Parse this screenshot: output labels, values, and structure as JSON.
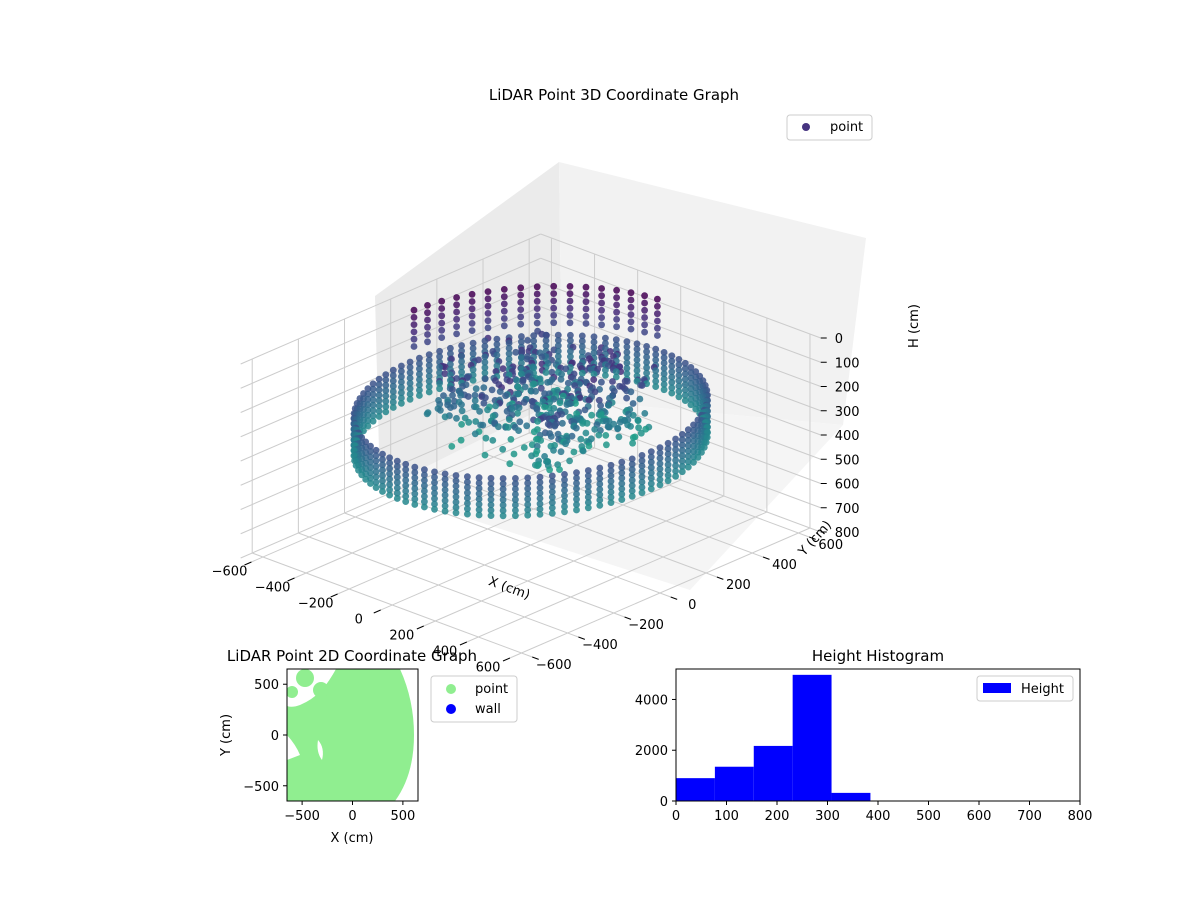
{
  "figure": {
    "charts": [
      {
        "id": "lidar-3d",
        "type": "scatter",
        "title": "LiDAR Point 3D Coordinate Graph",
        "xlabel": "X (cm)",
        "ylabel": "Y (cm)",
        "zlabel": "H (cm)",
        "xlim": [
          -650,
          650
        ],
        "ylim": [
          -650,
          650
        ],
        "zlim": [
          0,
          800
        ],
        "z_inverted": true,
        "x_ticks": [
          "−600",
          "−400",
          "−200",
          "0",
          "200",
          "400",
          "600"
        ],
        "y_ticks": [
          "−600",
          "−400",
          "−200",
          "0",
          "200",
          "400",
          "600"
        ],
        "z_ticks": [
          "0",
          "100",
          "200",
          "300",
          "400",
          "500",
          "600",
          "700",
          "800"
        ],
        "grid": true,
        "legend": {
          "position": "top-right",
          "entries": [
            "point"
          ]
        },
        "colormap": "viridis",
        "series": [
          {
            "name": "point",
            "description_values": {
              "ring_radius_cm": 560,
              "ring_height_range_cm": [
                230,
                400
              ],
              "sparse_posts_height_range_cm": [
                50,
                200
              ]
            }
          }
        ],
        "marker_color": "#463480"
      },
      {
        "id": "lidar-2d",
        "type": "scatter",
        "title": "LiDAR Point 2D Coordinate Graph",
        "xlabel": "X (cm)",
        "ylabel": "Y (cm)",
        "xlim": [
          -650,
          650
        ],
        "ylim": [
          -650,
          650
        ],
        "x_ticks": [
          "−500",
          "0",
          "500"
        ],
        "y_ticks": [
          "−500",
          "0",
          "500"
        ],
        "legend": {
          "position": "right-outside",
          "entries": [
            "point",
            "wall"
          ]
        },
        "series": [
          {
            "name": "point",
            "color": "#90ee90"
          },
          {
            "name": "wall",
            "color": "#0000ff"
          }
        ]
      },
      {
        "id": "height-hist",
        "type": "bar",
        "title": "Height Histogram",
        "xlim": [
          0,
          800
        ],
        "ylim": [
          0,
          5200
        ],
        "x_ticks": [
          "0",
          "100",
          "200",
          "300",
          "400",
          "500",
          "600",
          "700",
          "800"
        ],
        "y_ticks": [
          "0",
          "2000",
          "4000"
        ],
        "legend": {
          "position": "top-right",
          "entries": [
            "Height"
          ]
        },
        "bin_edges": [
          0,
          77,
          154,
          231,
          308,
          385,
          462,
          539,
          616,
          693,
          770
        ],
        "values": [
          900,
          1350,
          2170,
          4970,
          320,
          0,
          0,
          0,
          0,
          0
        ],
        "color": "#0000ff"
      }
    ]
  },
  "chart_data": [
    {
      "type": "scatter",
      "title": "LiDAR Point 3D Coordinate Graph",
      "xlabel": "X (cm)",
      "ylabel": "Y (cm)",
      "zlabel": "H (cm)",
      "xlim": [
        -650,
        650
      ],
      "ylim": [
        -650,
        650
      ],
      "zlim": [
        800,
        0
      ],
      "series": [
        {
          "name": "point"
        }
      ],
      "legend": "top-right",
      "grid": true
    },
    {
      "type": "scatter",
      "title": "LiDAR Point 2D Coordinate Graph",
      "xlabel": "X (cm)",
      "ylabel": "Y (cm)",
      "xlim": [
        -650,
        650
      ],
      "ylim": [
        -650,
        650
      ],
      "series": [
        {
          "name": "point"
        },
        {
          "name": "wall"
        }
      ],
      "legend": "right-outside"
    },
    {
      "type": "bar",
      "title": "Height Histogram",
      "categories": [
        "0-77",
        "77-154",
        "154-231",
        "231-308",
        "308-385",
        "385-462",
        "462-539",
        "539-616",
        "616-693",
        "693-770"
      ],
      "series": [
        {
          "name": "Height",
          "values": [
            900,
            1350,
            2170,
            4970,
            320,
            0,
            0,
            0,
            0,
            0
          ]
        }
      ],
      "xlim": [
        0,
        800
      ],
      "ylim": [
        0,
        5200
      ],
      "legend": "top-right"
    }
  ]
}
